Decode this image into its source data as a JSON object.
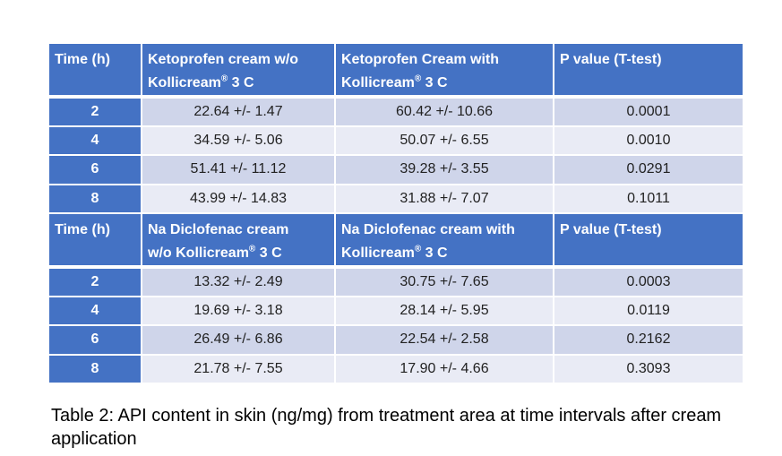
{
  "table1": {
    "headers": [
      "Time (h)",
      "Ketoprofen cream w/o",
      "Ketoprofen Cream with",
      "P value (T-test)"
    ],
    "header_line2": [
      "",
      "Kollicream",
      "Kollicream",
      ""
    ],
    "header_suffix": [
      "",
      " 3 C",
      " 3 C",
      ""
    ],
    "rows": [
      [
        "2",
        "22.64 +/- 1.47",
        "60.42 +/- 10.66",
        "0.0001"
      ],
      [
        "4",
        "34.59 +/- 5.06",
        "50.07 +/- 6.55",
        "0.0010"
      ],
      [
        "6",
        "51.41 +/- 11.12",
        "39.28 +/- 3.55",
        "0.0291"
      ],
      [
        "8",
        "43.99 +/- 14.83",
        "31.88 +/- 7.07",
        "0.1011"
      ]
    ]
  },
  "table2": {
    "headers": [
      "Time (h)",
      "Na Diclofenac cream",
      "Na Diclofenac cream with",
      "P value (T-test)"
    ],
    "header_line2": [
      "",
      "w/o Kollicream",
      "Kollicream",
      ""
    ],
    "header_suffix": [
      "",
      " 3 C",
      " 3 C",
      ""
    ],
    "rows": [
      [
        "2",
        "13.32 +/- 2.49",
        "30.75 +/- 7.65",
        "0.0003"
      ],
      [
        "4",
        "19.69 +/- 3.18",
        "28.14 +/- 5.95",
        "0.0119"
      ],
      [
        "6",
        "26.49 +/- 6.86",
        "22.54 +/- 2.58",
        "0.2162"
      ],
      [
        "8",
        "21.78 +/- 7.55",
        "17.90 +/- 4.66",
        "0.3093"
      ]
    ]
  },
  "registered_mark": "®",
  "caption": "Table 2: API content in skin (ng/mg) from treatment area at time intervals after cream application",
  "colors": {
    "header_blue": "#4472c4",
    "row_dark": "#cfd5ea",
    "row_light": "#e9ebf5"
  }
}
